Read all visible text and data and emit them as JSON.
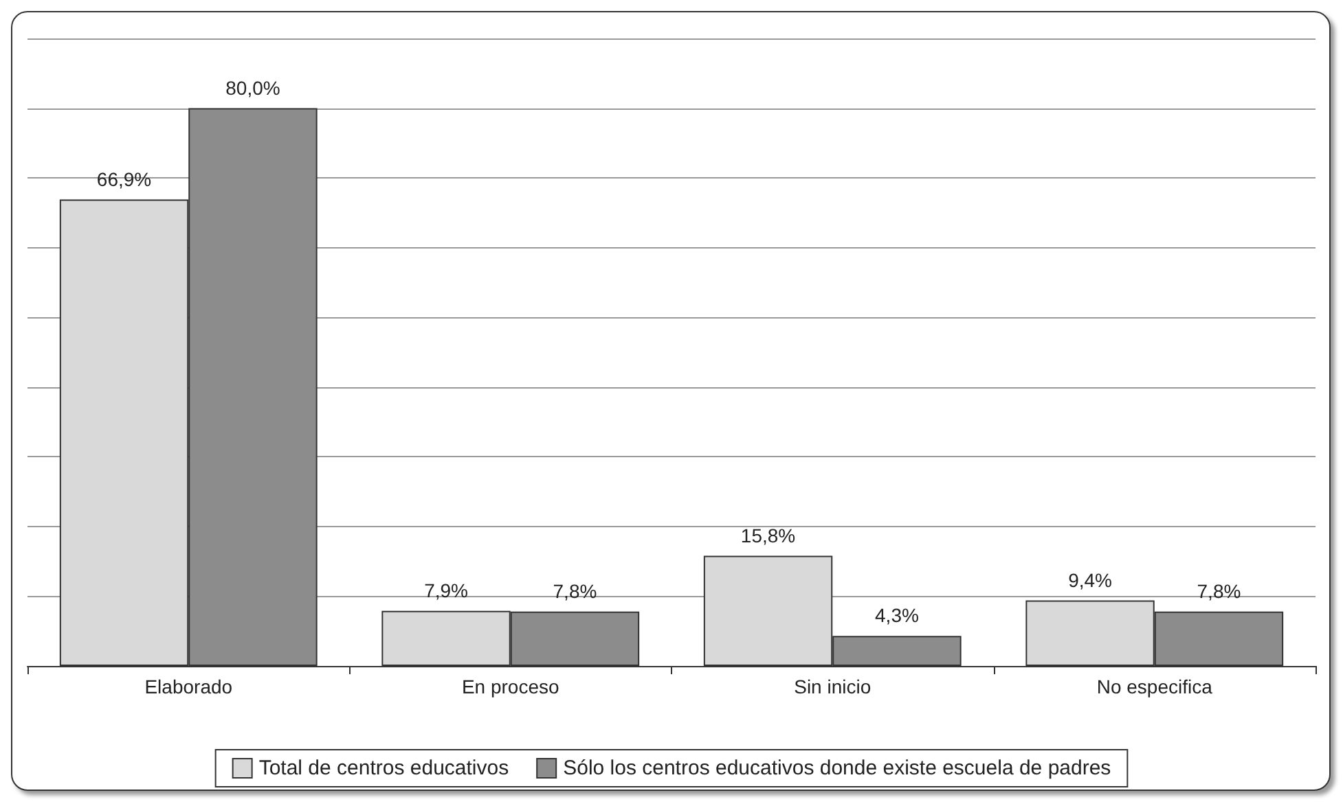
{
  "chart_data": {
    "type": "bar",
    "categories": [
      "Elaborado",
      "En proceso",
      "Sin inicio",
      "No especifica"
    ],
    "series": [
      {
        "name": "Total de centros educativos",
        "color": "#d9d9d9",
        "values": [
          66.9,
          7.9,
          15.8,
          9.4
        ],
        "value_labels": [
          "66,9%",
          "7,9%",
          "15,8%",
          "9,4%"
        ]
      },
      {
        "name": "Sólo los centros educativos donde existe escuela de padres",
        "color": "#8c8c8c",
        "values": [
          80.0,
          7.8,
          4.3,
          7.8
        ],
        "value_labels": [
          "80,0%",
          "7,8%",
          "4,3%",
          "7,8%"
        ]
      }
    ],
    "ylim": [
      0,
      90
    ],
    "yticks": [
      {
        "value": 0,
        "label": null
      },
      {
        "value": 10,
        "label": null
      },
      {
        "value": 20,
        "label": null
      },
      {
        "value": 30,
        "label": null
      },
      {
        "value": 40,
        "label": null
      },
      {
        "value": 50,
        "label": null
      },
      {
        "value": 60,
        "label": null
      },
      {
        "value": 70,
        "label": null
      },
      {
        "value": 80,
        "label": null
      },
      {
        "value": 90,
        "label": null
      }
    ],
    "grid": "y",
    "legend": "bottom",
    "tick_labels": "x"
  }
}
